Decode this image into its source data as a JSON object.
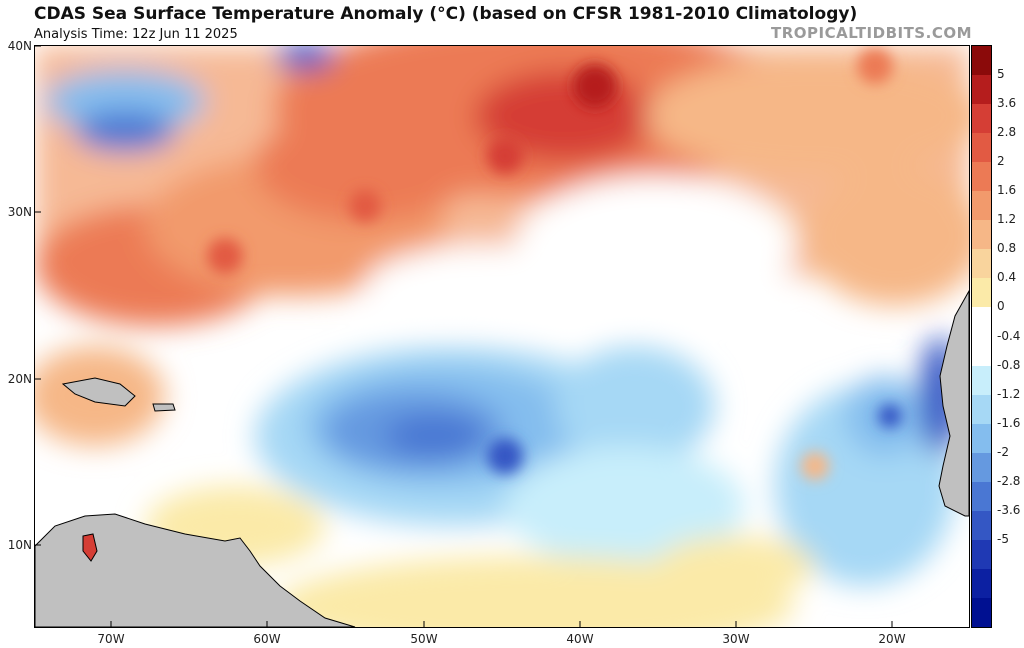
{
  "header": {
    "title": "CDAS Sea Surface Temperature Anomaly (°C) (based on CFSR 1981-2010 Climatology)",
    "analysis_time": "Analysis Time: 12z Jun 11 2025",
    "credit": "TROPICALTIDBITS.COM"
  },
  "map": {
    "lat_labels": [
      "40N",
      "30N",
      "20N",
      "10N"
    ],
    "lon_labels": [
      "70W",
      "60W",
      "50W",
      "40W",
      "30W",
      "20W"
    ],
    "land_color": "#c0c0c0"
  },
  "colorbar": {
    "labels": [
      "5",
      "3.6",
      "2.8",
      "2",
      "1.6",
      "1.2",
      "0.8",
      "0.4",
      "0",
      "-0.4",
      "-0.8",
      "-1.2",
      "-1.6",
      "-2",
      "-2.8",
      "-3.6",
      "-5"
    ],
    "colors": [
      "#8b0a0a",
      "#b51d1d",
      "#d53e35",
      "#e25a43",
      "#ec7a55",
      "#f29a6c",
      "#f6b787",
      "#f9d49d",
      "#fbeaa8",
      "#ffffff",
      "#ffffff",
      "#c8eefb",
      "#a6d8f5",
      "#84bdee",
      "#6599e0",
      "#4a77d3",
      "#3457c4",
      "#1f39b4",
      "#0c20a2",
      "#001091"
    ]
  }
}
